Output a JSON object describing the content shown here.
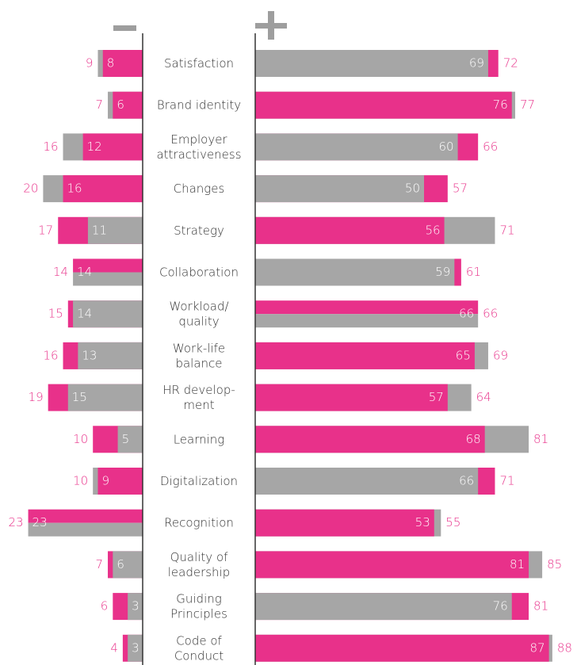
{
  "chart_data": {
    "type": "bar",
    "orientation": "horizontal",
    "diverging": true,
    "categories": [
      [
        "Satisfaction"
      ],
      [
        "Brand identity"
      ],
      [
        "Employer",
        "attractiveness"
      ],
      [
        "Changes"
      ],
      [
        "Strategy"
      ],
      [
        "Collaboration"
      ],
      [
        "Workload/",
        "quality"
      ],
      [
        "Work-life",
        "balance"
      ],
      [
        "HR develop-",
        "ment"
      ],
      [
        "Learning"
      ],
      [
        "Digitalization"
      ],
      [
        "Recognition"
      ],
      [
        "Quality of",
        "leadership"
      ],
      [
        "Guiding",
        "Principles"
      ],
      [
        "Code of",
        "Conduct"
      ]
    ],
    "series": [
      {
        "color": "#e8318a",
        "negative": [
          8,
          6,
          12,
          16,
          17,
          14,
          15,
          16,
          19,
          10,
          9,
          23,
          7,
          6,
          4
        ],
        "positive": [
          72,
          76,
          66,
          57,
          56,
          61,
          66,
          65,
          57,
          68,
          71,
          53,
          81,
          81,
          87
        ]
      },
      {
        "color": "#a6a6a6",
        "negative": [
          9,
          7,
          16,
          20,
          11,
          14,
          14,
          13,
          15,
          5,
          10,
          23,
          6,
          3,
          3
        ],
        "positive": [
          69,
          77,
          60,
          50,
          71,
          59,
          66,
          69,
          64,
          81,
          66,
          55,
          85,
          76,
          88
        ]
      }
    ],
    "label_color": "#e8318a",
    "xlim_negative": [
      0,
      25
    ],
    "xlim_positive": [
      0,
      100
    ]
  }
}
